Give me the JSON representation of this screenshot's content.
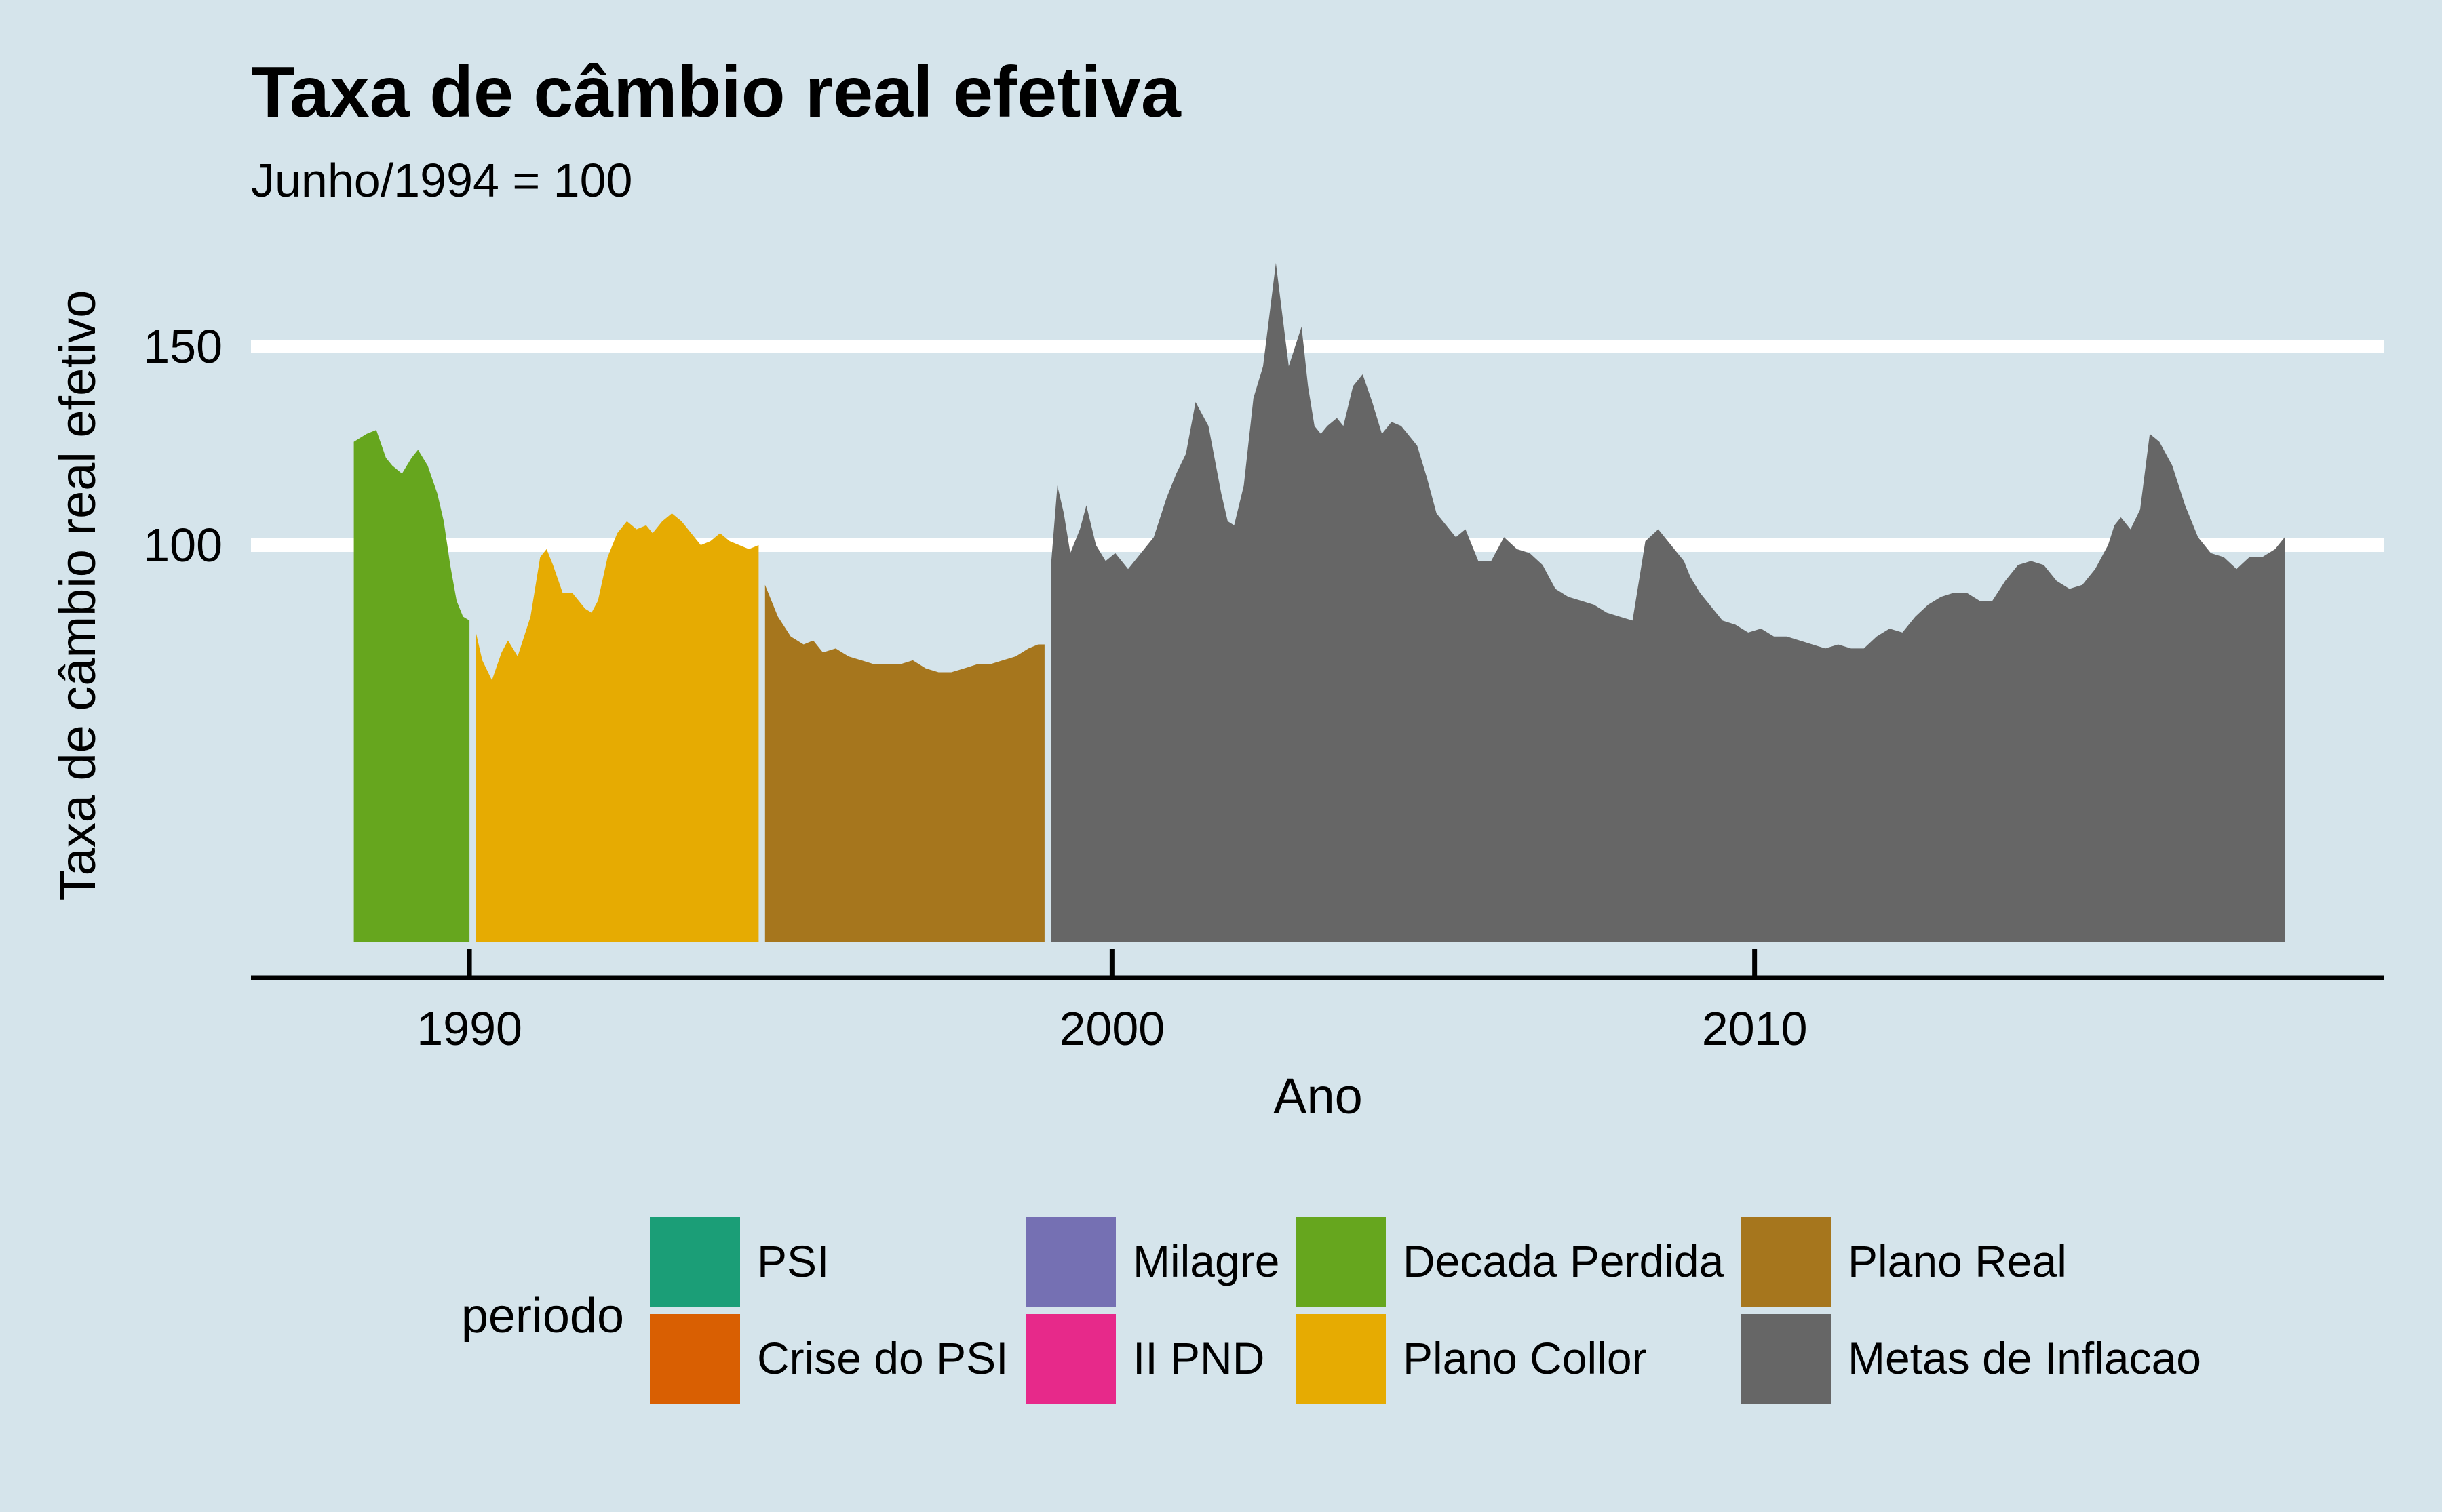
{
  "chart_data": {
    "type": "area",
    "title": "Taxa de câmbio real efetiva",
    "subtitle": "Junho/1994 = 100",
    "xlabel": "Ano",
    "ylabel": "Taxa de câmbio real efetivo",
    "xlim": [
      1986.6,
      2019.8
    ],
    "ylim": [
      0,
      175
    ],
    "baseline": 0,
    "x_ticks": [
      1990,
      2000,
      2010
    ],
    "x_tick_labels": [
      "1990",
      "2000",
      "2010"
    ],
    "y_ticks": [
      100,
      150
    ],
    "y_tick_labels": [
      "100",
      "150"
    ],
    "legend": {
      "title": "periodo",
      "position": "bottom",
      "ncol": 4,
      "entries": [
        {
          "label": "PSI",
          "color": "#1b9e77"
        },
        {
          "label": "Crise do PSI",
          "color": "#d95f02"
        },
        {
          "label": "Milagre",
          "color": "#7570b3"
        },
        {
          "label": "II PND",
          "color": "#e7298a"
        },
        {
          "label": "Decada Perdida",
          "color": "#66a61e"
        },
        {
          "label": "Plano Collor",
          "color": "#e6ab02"
        },
        {
          "label": "Plano Real",
          "color": "#a6761d"
        },
        {
          "label": "Metas de Inflacao",
          "color": "#666666"
        }
      ]
    },
    "series": [
      {
        "name": "Decada Perdida",
        "color": "#66a61e",
        "x": [
          1988.2,
          1988.4,
          1988.55,
          1988.7,
          1988.8,
          1988.95,
          1989.1,
          1989.2,
          1989.35,
          1989.5,
          1989.6,
          1989.7,
          1989.8,
          1989.9,
          1990.0
        ],
        "y": [
          126,
          128,
          129,
          122,
          120,
          118,
          122,
          124,
          120,
          113,
          106,
          95,
          86,
          82,
          81
        ]
      },
      {
        "name": "Plano Collor",
        "color": "#e6ab02",
        "x": [
          1990.1,
          1990.2,
          1990.35,
          1990.5,
          1990.6,
          1990.75,
          1990.95,
          1991.1,
          1991.2,
          1991.3,
          1991.45,
          1991.6,
          1991.7,
          1991.8,
          1991.9,
          1992.0,
          1992.15,
          1992.3,
          1992.45,
          1992.6,
          1992.75,
          1992.85,
          1993.0,
          1993.15,
          1993.3,
          1993.45,
          1993.6,
          1993.75,
          1993.9,
          1994.05,
          1994.2,
          1994.35,
          1994.5
        ],
        "y": [
          78,
          71,
          66,
          73,
          76,
          72,
          82,
          97,
          99,
          95,
          88,
          88,
          86,
          84,
          83,
          86,
          97,
          103,
          106,
          104,
          105,
          103,
          106,
          108,
          106,
          103,
          100,
          101,
          103,
          101,
          100,
          99,
          100
        ]
      },
      {
        "name": "Plano Real",
        "color": "#a6761d",
        "x": [
          1994.6,
          1994.8,
          1995.0,
          1995.2,
          1995.35,
          1995.5,
          1995.7,
          1995.9,
          1996.1,
          1996.3,
          1996.5,
          1996.7,
          1996.9,
          1997.1,
          1997.3,
          1997.5,
          1997.7,
          1997.9,
          1998.1,
          1998.3,
          1998.5,
          1998.7,
          1998.85,
          1998.95
        ],
        "y": [
          90,
          82,
          77,
          75,
          76,
          73,
          74,
          72,
          71,
          70,
          70,
          70,
          71,
          69,
          68,
          68,
          69,
          70,
          70,
          71,
          72,
          74,
          75,
          75
        ]
      },
      {
        "name": "Metas de Inflacao",
        "color": "#666666",
        "x": [
          1999.05,
          1999.15,
          1999.25,
          1999.35,
          1999.5,
          1999.6,
          1999.75,
          1999.9,
          2000.05,
          2000.25,
          2000.45,
          2000.65,
          2000.85,
          2001.0,
          2001.15,
          2001.3,
          2001.5,
          2001.7,
          2001.8,
          2001.9,
          2002.05,
          2002.2,
          2002.35,
          2002.55,
          2002.75,
          2002.85,
          2002.95,
          2003.05,
          2003.15,
          2003.25,
          2003.35,
          2003.5,
          2003.6,
          2003.75,
          2003.9,
          2004.05,
          2004.2,
          2004.35,
          2004.5,
          2004.6,
          2004.75,
          2004.9,
          2005.05,
          2005.2,
          2005.35,
          2005.5,
          2005.7,
          2005.9,
          2006.1,
          2006.3,
          2006.5,
          2006.7,
          2006.9,
          2007.1,
          2007.3,
          2007.5,
          2007.7,
          2007.9,
          2008.1,
          2008.3,
          2008.5,
          2008.7,
          2008.8,
          2008.9,
          2009.0,
          2009.15,
          2009.3,
          2009.5,
          2009.7,
          2009.9,
          2010.1,
          2010.3,
          2010.5,
          2010.7,
          2010.9,
          2011.1,
          2011.3,
          2011.5,
          2011.7,
          2011.9,
          2012.1,
          2012.3,
          2012.5,
          2012.7,
          2012.9,
          2013.1,
          2013.3,
          2013.5,
          2013.7,
          2013.9,
          2014.1,
          2014.3,
          2014.5,
          2014.7,
          2014.9,
          2015.1,
          2015.3,
          2015.5,
          2015.6,
          2015.7,
          2015.85,
          2016.0,
          2016.15,
          2016.3,
          2016.5,
          2016.7,
          2016.9,
          2017.1,
          2017.3,
          2017.5,
          2017.7,
          2017.9,
          2018.1,
          2018.25
        ],
        "y": [
          95,
          115,
          108,
          98,
          104,
          110,
          100,
          96,
          98,
          94,
          98,
          102,
          112,
          118,
          123,
          136,
          130,
          113,
          106,
          105,
          115,
          137,
          145,
          171,
          145,
          150,
          155,
          140,
          130,
          128,
          130,
          132,
          130,
          140,
          143,
          136,
          128,
          131,
          130,
          128,
          125,
          117,
          108,
          105,
          102,
          104,
          96,
          96,
          102,
          99,
          98,
          95,
          89,
          87,
          86,
          85,
          83,
          82,
          81,
          101,
          104,
          100,
          98,
          96,
          92,
          88,
          85,
          81,
          80,
          78,
          79,
          77,
          77,
          76,
          75,
          74,
          75,
          74,
          74,
          77,
          79,
          78,
          82,
          85,
          87,
          88,
          88,
          86,
          86,
          91,
          95,
          96,
          95,
          91,
          89,
          90,
          94,
          100,
          105,
          107,
          104,
          109,
          128,
          126,
          120,
          110,
          102,
          98,
          97,
          94,
          97,
          97,
          99,
          102
        ]
      }
    ]
  }
}
